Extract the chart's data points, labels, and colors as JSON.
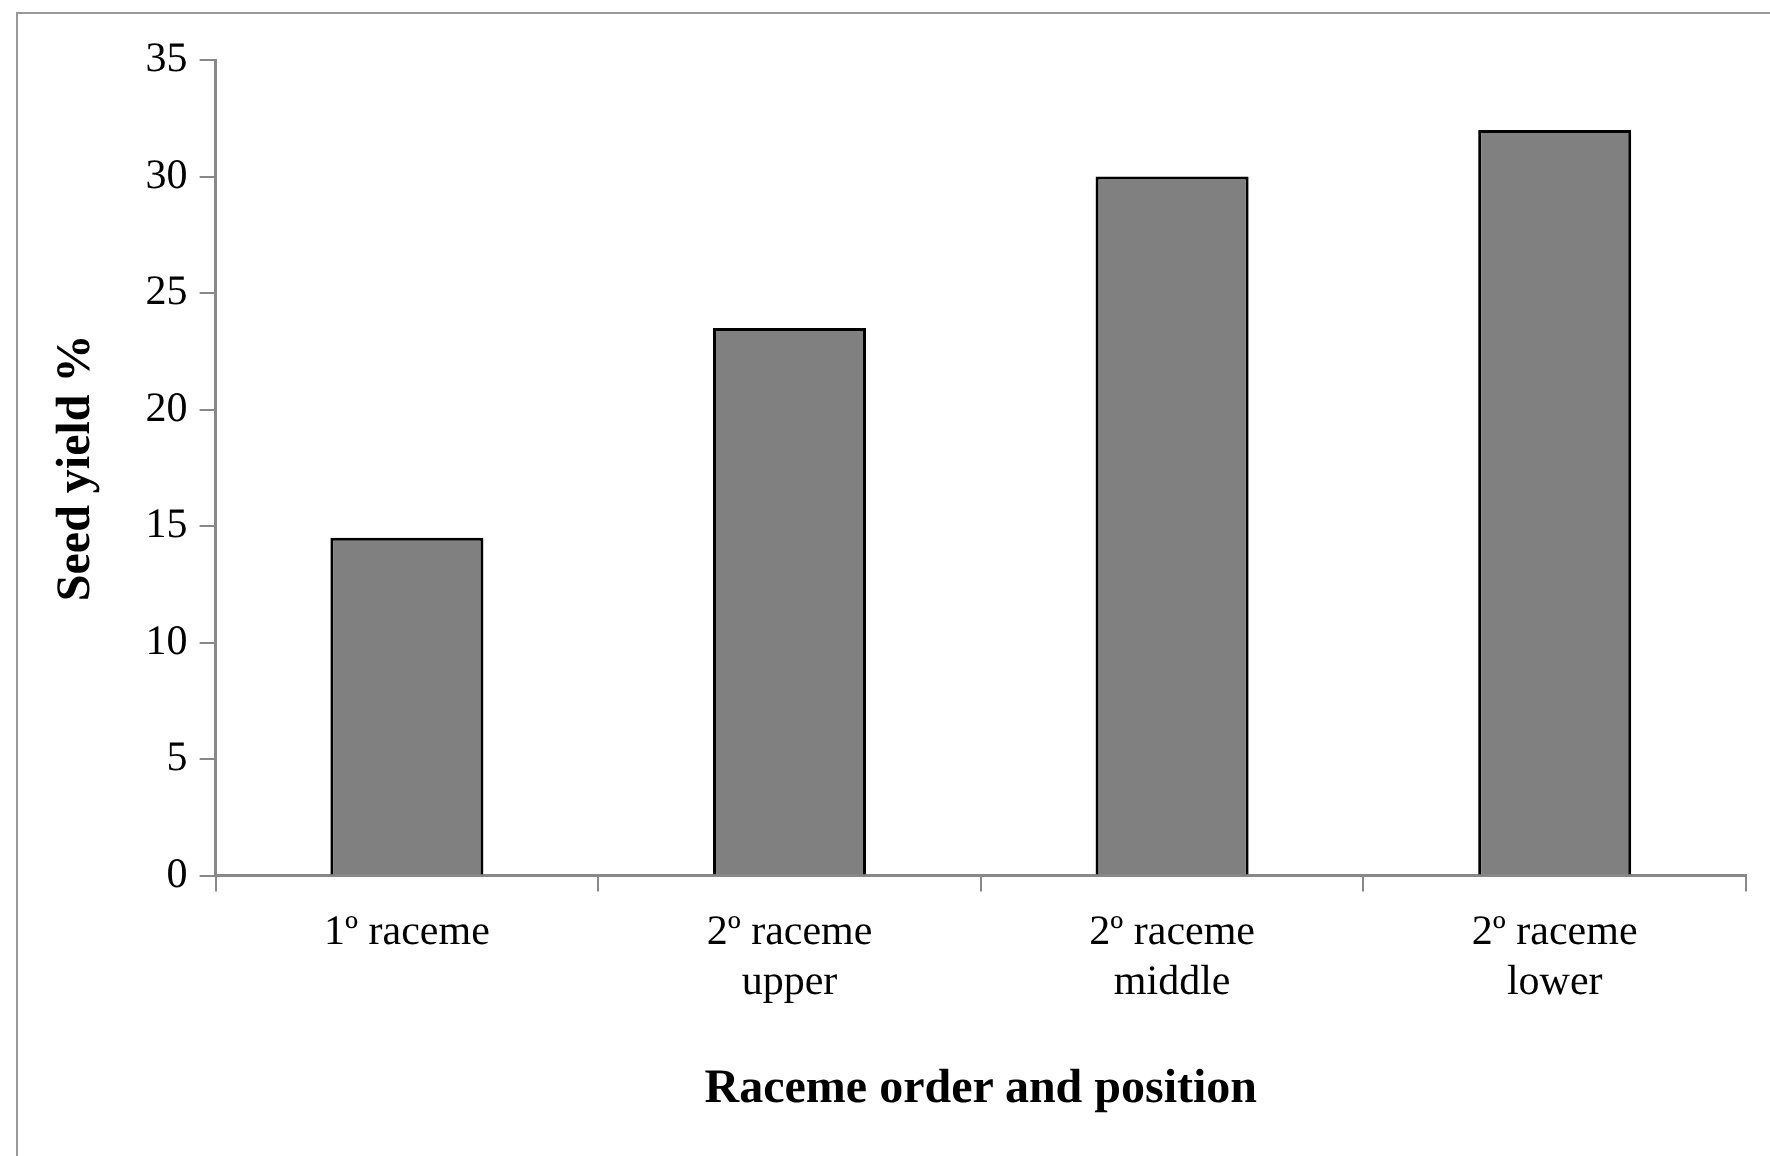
{
  "chart_data": {
    "type": "bar",
    "xlabel": "Raceme order and position",
    "ylabel": "Seed yield %",
    "categories": [
      "1º raceme",
      "2º raceme\nupper",
      "2º raceme\nmiddle",
      "2º raceme\nlower"
    ],
    "values": [
      14.5,
      23.5,
      30,
      32
    ],
    "color": "#808080",
    "ylim": [
      0,
      35
    ],
    "yticks": [
      0,
      5,
      10,
      15,
      20,
      25,
      30,
      35
    ],
    "grid": false,
    "legend": false
  }
}
